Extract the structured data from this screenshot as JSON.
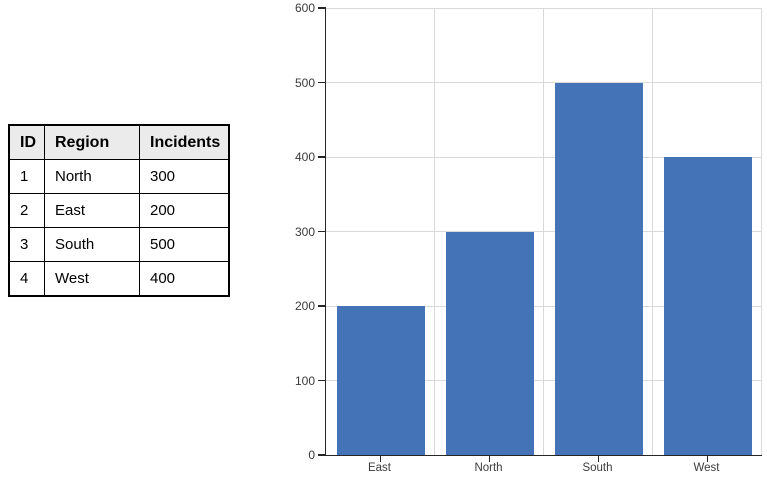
{
  "table": {
    "columns": [
      "ID",
      "Region",
      "Incidents"
    ],
    "rows": [
      [
        "1",
        "North",
        "300"
      ],
      [
        "2",
        "East",
        "200"
      ],
      [
        "3",
        "South",
        "500"
      ],
      [
        "4",
        "West",
        "400"
      ]
    ]
  },
  "chart_data": {
    "type": "bar",
    "categories": [
      "East",
      "North",
      "South",
      "West"
    ],
    "values": [
      200,
      300,
      500,
      400
    ],
    "title": "",
    "xlabel": "",
    "ylabel": "",
    "ylim": [
      0,
      600
    ],
    "yticks": [
      0,
      100,
      200,
      300,
      400,
      500,
      600
    ],
    "grid": true,
    "legend": false,
    "colors": {
      "bar": "#4473B7",
      "gridline": "#D9D9D9",
      "axis": "#262626",
      "tick_label": "#3B3B3B",
      "table_header_bg": "#EBEBEB"
    }
  }
}
